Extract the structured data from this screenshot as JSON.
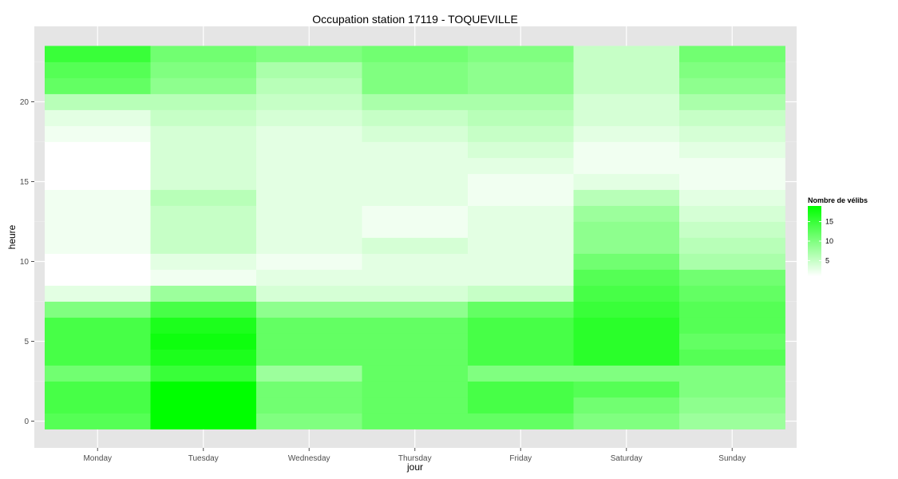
{
  "chart_data": {
    "type": "heatmap",
    "title": "Occupation station 17119 - TOQUEVILLE",
    "xlabel": "jour",
    "ylabel": "heure",
    "categories": [
      "Monday",
      "Tuesday",
      "Wednesday",
      "Thursday",
      "Friday",
      "Saturday",
      "Sunday"
    ],
    "y_values": [
      0,
      1,
      2,
      3,
      4,
      5,
      6,
      7,
      8,
      9,
      10,
      11,
      12,
      13,
      14,
      15,
      16,
      17,
      18,
      19,
      20,
      21,
      22,
      23
    ],
    "y_ticks": [
      0,
      5,
      10,
      15,
      20
    ],
    "ylim": [
      -0.5,
      23.5
    ],
    "grid": true,
    "legend": {
      "title": "Nombre de vélibs",
      "placement": "right",
      "ticks": [
        5,
        10,
        15
      ],
      "range": [
        1,
        19
      ],
      "low_color": "#ffffff",
      "high_color": "#00ff00"
    },
    "values": [
      [
        13,
        19,
        10,
        12,
        12,
        10,
        8
      ],
      [
        14,
        19,
        11,
        12,
        14,
        11,
        9
      ],
      [
        14,
        19,
        11,
        12,
        14,
        13,
        10
      ],
      [
        11,
        15,
        8,
        12,
        10,
        10,
        10
      ],
      [
        14,
        17,
        12,
        12,
        14,
        16,
        13
      ],
      [
        14,
        18,
        12,
        12,
        14,
        16,
        12
      ],
      [
        14,
        17,
        12,
        12,
        14,
        16,
        13
      ],
      [
        10,
        14,
        9,
        9,
        12,
        15,
        13
      ],
      [
        3,
        8,
        4,
        4,
        5,
        14,
        12
      ],
      [
        1,
        2,
        3,
        3,
        3,
        13,
        11
      ],
      [
        1,
        3,
        2,
        3,
        3,
        11,
        7
      ],
      [
        2,
        5,
        3,
        4,
        3,
        9,
        6
      ],
      [
        2,
        5,
        3,
        2,
        3,
        9,
        5
      ],
      [
        2,
        5,
        3,
        2,
        3,
        8,
        4
      ],
      [
        2,
        6,
        3,
        3,
        2,
        6,
        3
      ],
      [
        1,
        4,
        3,
        3,
        2,
        3,
        2
      ],
      [
        1,
        4,
        3,
        3,
        3,
        2,
        2
      ],
      [
        1,
        4,
        3,
        3,
        4,
        2,
        3
      ],
      [
        2,
        4,
        3,
        4,
        5,
        3,
        4
      ],
      [
        3,
        5,
        4,
        5,
        6,
        4,
        5
      ],
      [
        6,
        6,
        5,
        7,
        7,
        4,
        7
      ],
      [
        12,
        9,
        6,
        10,
        9,
        5,
        9
      ],
      [
        13,
        10,
        7,
        10,
        9,
        5,
        10
      ],
      [
        15,
        11,
        10,
        11,
        10,
        5,
        11
      ]
    ]
  }
}
